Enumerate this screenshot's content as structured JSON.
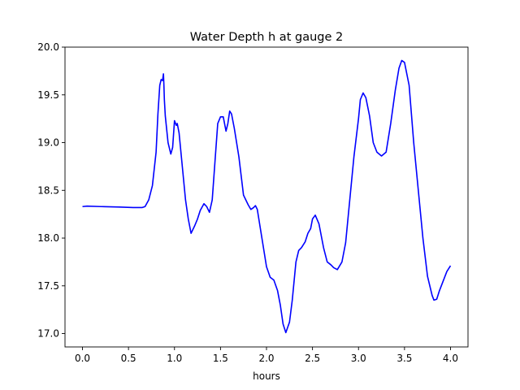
{
  "chart_data": {
    "type": "line",
    "title": "Water Depth h at gauge 2",
    "xlabel": "hours",
    "ylabel": "",
    "xlim": [
      -0.19,
      4.19
    ],
    "ylim": [
      16.86,
      20.0
    ],
    "xticks": [
      0.0,
      0.5,
      1.0,
      1.5,
      2.0,
      2.5,
      3.0,
      3.5,
      4.0
    ],
    "xtick_labels": [
      "0.0",
      "0.5",
      "1.0",
      "1.5",
      "2.0",
      "2.5",
      "3.0",
      "3.5",
      "4.0"
    ],
    "yticks": [
      17.0,
      17.5,
      18.0,
      18.5,
      19.0,
      19.5,
      20.0
    ],
    "ytick_labels": [
      "17.0",
      "17.5",
      "18.0",
      "18.5",
      "19.0",
      "19.5",
      "20.0"
    ],
    "grid": false,
    "color": "#0000ff",
    "series": [
      {
        "name": "",
        "x": [
          0.0,
          0.05,
          0.2,
          0.4,
          0.55,
          0.65,
          0.68,
          0.72,
          0.76,
          0.8,
          0.82,
          0.84,
          0.855,
          0.87,
          0.88,
          0.885,
          0.89,
          0.9,
          0.93,
          0.96,
          0.98,
          1.0,
          1.02,
          1.03,
          1.05,
          1.08,
          1.12,
          1.15,
          1.18,
          1.22,
          1.25,
          1.28,
          1.32,
          1.35,
          1.38,
          1.41,
          1.44,
          1.47,
          1.5,
          1.53,
          1.56,
          1.58,
          1.6,
          1.62,
          1.65,
          1.7,
          1.75,
          1.8,
          1.83,
          1.86,
          1.88,
          1.9,
          1.95,
          2.0,
          2.04,
          2.08,
          2.12,
          2.15,
          2.18,
          2.21,
          2.25,
          2.28,
          2.3,
          2.32,
          2.35,
          2.38,
          2.42,
          2.45,
          2.48,
          2.5,
          2.53,
          2.57,
          2.62,
          2.66,
          2.7,
          2.73,
          2.77,
          2.82,
          2.86,
          2.9,
          2.95,
          3.0,
          3.02,
          3.05,
          3.08,
          3.12,
          3.16,
          3.2,
          3.25,
          3.3,
          3.35,
          3.4,
          3.44,
          3.47,
          3.5,
          3.55,
          3.6,
          3.65,
          3.7,
          3.75,
          3.8,
          3.82,
          3.85,
          3.88,
          3.92,
          3.96,
          4.0
        ],
        "values": [
          18.33,
          18.335,
          18.33,
          18.325,
          18.32,
          18.32,
          18.33,
          18.4,
          18.55,
          18.9,
          19.3,
          19.6,
          19.66,
          19.65,
          19.72,
          19.6,
          19.45,
          19.28,
          19.0,
          18.88,
          18.95,
          19.23,
          19.18,
          19.2,
          19.1,
          18.8,
          18.4,
          18.2,
          18.05,
          18.13,
          18.2,
          18.29,
          18.36,
          18.33,
          18.27,
          18.4,
          18.8,
          19.2,
          19.27,
          19.27,
          19.12,
          19.2,
          19.33,
          19.3,
          19.15,
          18.85,
          18.45,
          18.35,
          18.3,
          18.32,
          18.34,
          18.3,
          18.0,
          17.7,
          17.59,
          17.56,
          17.45,
          17.3,
          17.1,
          17.01,
          17.12,
          17.35,
          17.55,
          17.75,
          17.87,
          17.9,
          17.96,
          18.05,
          18.1,
          18.2,
          18.24,
          18.15,
          17.9,
          17.75,
          17.72,
          17.69,
          17.67,
          17.75,
          17.95,
          18.35,
          18.85,
          19.25,
          19.45,
          19.52,
          19.47,
          19.28,
          19.0,
          18.9,
          18.86,
          18.9,
          19.2,
          19.55,
          19.78,
          19.86,
          19.84,
          19.6,
          19.0,
          18.5,
          18.0,
          17.6,
          17.4,
          17.35,
          17.36,
          17.45,
          17.55,
          17.65,
          17.71
        ]
      }
    ]
  }
}
